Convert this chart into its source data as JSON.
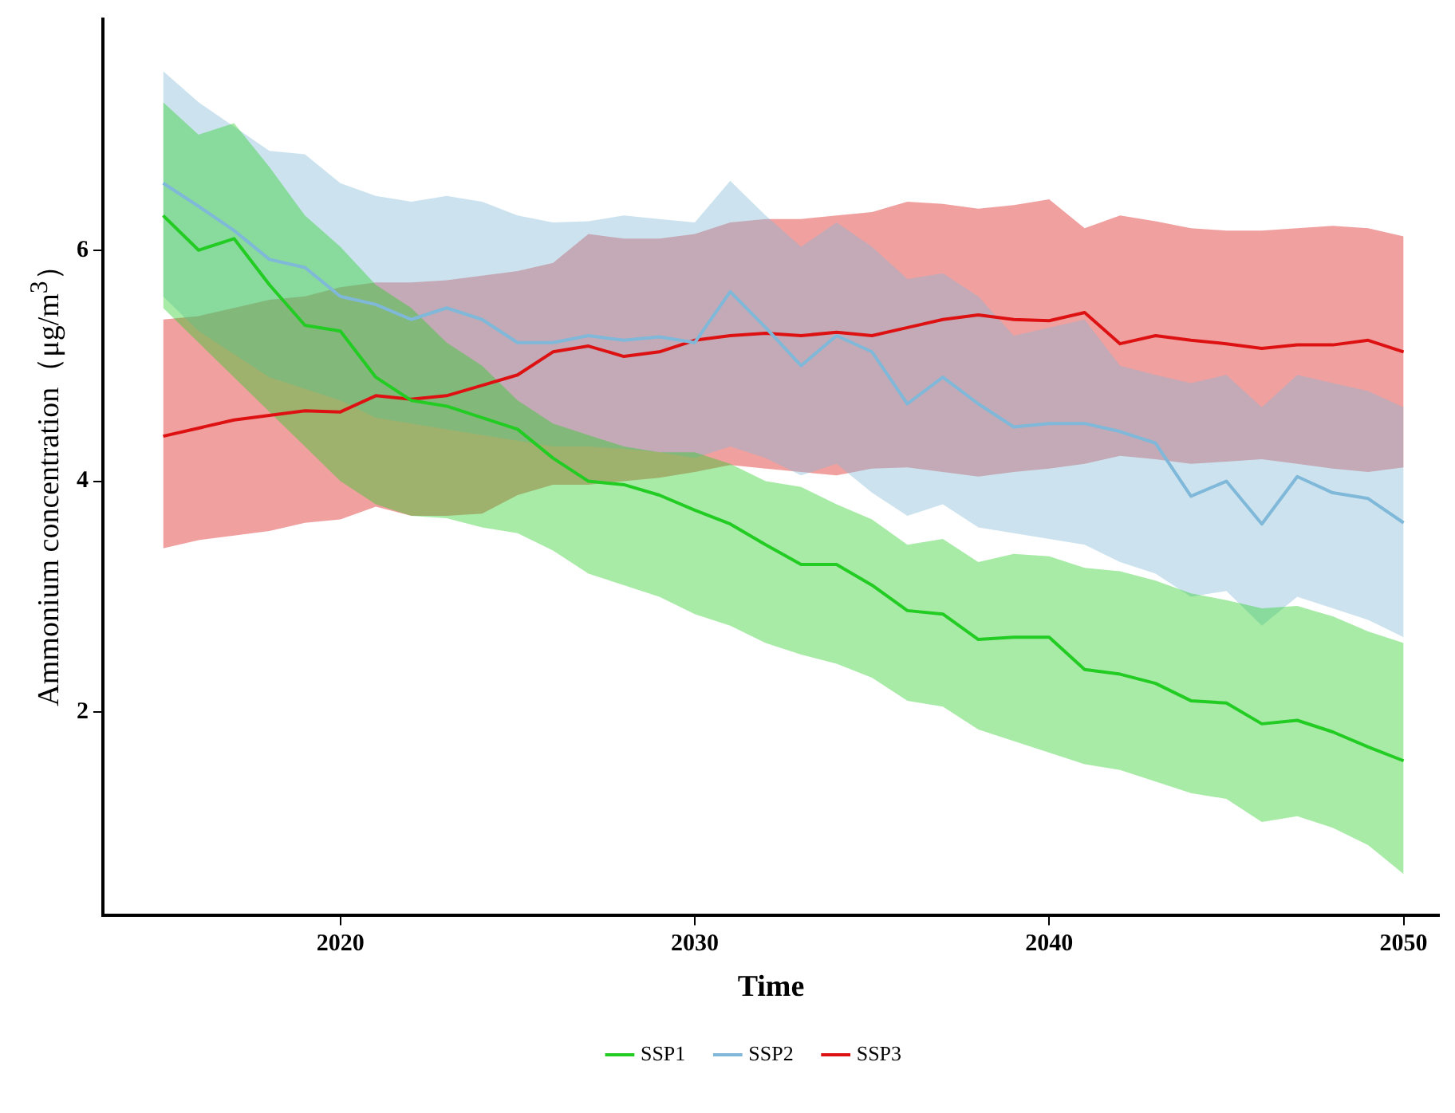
{
  "chart_data": {
    "type": "line",
    "xlabel": "Time",
    "ylabel": "Ammonium concentration（μg/m$^{3}$）",
    "x": [
      2015,
      2016,
      2017,
      2018,
      2019,
      2020,
      2021,
      2022,
      2023,
      2024,
      2025,
      2026,
      2027,
      2028,
      2029,
      2030,
      2031,
      2032,
      2033,
      2034,
      2035,
      2036,
      2037,
      2038,
      2039,
      2040,
      2041,
      2042,
      2043,
      2044,
      2045,
      2046,
      2047,
      2048,
      2049,
      2050
    ],
    "xlim": [
      2013.3,
      2051
    ],
    "xticks": [
      2020,
      2030,
      2040,
      2050
    ],
    "ylim": [
      0.24,
      8
    ],
    "yticks": [
      2,
      4,
      6
    ],
    "grid": false,
    "legend": "bottom",
    "marker": "none",
    "line_style": "solid",
    "series": [
      {
        "name": "SSP1",
        "color": "#22cc22",
        "values": [
          6.3,
          6.0,
          6.1,
          5.7,
          5.35,
          5.3,
          4.9,
          4.7,
          4.65,
          4.55,
          4.45,
          4.2,
          4.0,
          3.97,
          3.88,
          3.75,
          3.63,
          3.45,
          3.28,
          3.28,
          3.1,
          2.88,
          2.85,
          2.63,
          2.65,
          2.65,
          2.37,
          2.33,
          2.25,
          2.1,
          2.08,
          1.9,
          1.93,
          1.83,
          1.7,
          1.58
        ],
        "lower": [
          5.5,
          5.2,
          4.9,
          4.6,
          4.3,
          4.0,
          3.8,
          3.7,
          3.68,
          3.6,
          3.55,
          3.4,
          3.2,
          3.1,
          3.0,
          2.85,
          2.75,
          2.6,
          2.5,
          2.42,
          2.3,
          2.1,
          2.05,
          1.85,
          1.75,
          1.65,
          1.55,
          1.5,
          1.4,
          1.3,
          1.25,
          1.05,
          1.1,
          1.0,
          0.85,
          0.6
        ],
        "upper": [
          7.28,
          7.0,
          7.1,
          6.72,
          6.3,
          6.03,
          5.7,
          5.5,
          5.2,
          5.0,
          4.7,
          4.5,
          4.4,
          4.3,
          4.25,
          4.25,
          4.15,
          4.0,
          3.95,
          3.8,
          3.67,
          3.45,
          3.5,
          3.3,
          3.37,
          3.35,
          3.25,
          3.22,
          3.14,
          3.03,
          2.97,
          2.9,
          2.92,
          2.83,
          2.7,
          2.6
        ]
      },
      {
        "name": "SSP2",
        "color": "#7fb8d8",
        "values": [
          6.58,
          6.38,
          6.17,
          5.92,
          5.85,
          5.6,
          5.53,
          5.4,
          5.5,
          5.4,
          5.2,
          5.2,
          5.26,
          5.22,
          5.25,
          5.2,
          5.64,
          5.33,
          5.0,
          5.26,
          5.12,
          4.67,
          4.9,
          4.67,
          4.47,
          4.5,
          4.5,
          4.43,
          4.33,
          3.87,
          4.0,
          3.63,
          4.04,
          3.9,
          3.85,
          3.64
        ],
        "lower": [
          5.6,
          5.3,
          5.1,
          4.9,
          4.8,
          4.7,
          4.55,
          4.5,
          4.45,
          4.4,
          4.35,
          4.3,
          4.3,
          4.28,
          4.25,
          4.2,
          4.3,
          4.2,
          4.05,
          4.15,
          3.9,
          3.7,
          3.8,
          3.6,
          3.55,
          3.5,
          3.45,
          3.3,
          3.2,
          3.0,
          3.05,
          2.75,
          3.0,
          2.9,
          2.8,
          2.65
        ],
        "upper": [
          7.55,
          7.28,
          7.07,
          6.86,
          6.83,
          6.58,
          6.47,
          6.42,
          6.47,
          6.42,
          6.3,
          6.24,
          6.25,
          6.3,
          6.27,
          6.24,
          6.6,
          6.3,
          6.03,
          6.24,
          6.03,
          5.75,
          5.8,
          5.6,
          5.26,
          5.33,
          5.4,
          5.0,
          4.92,
          4.85,
          4.92,
          4.64,
          4.92,
          4.85,
          4.78,
          4.64
        ]
      },
      {
        "name": "SSP3",
        "color": "#dd1111",
        "values": [
          4.39,
          4.46,
          4.53,
          4.57,
          4.61,
          4.6,
          4.74,
          4.71,
          4.74,
          4.83,
          4.92,
          5.12,
          5.17,
          5.08,
          5.12,
          5.22,
          5.26,
          5.28,
          5.26,
          5.29,
          5.26,
          5.33,
          5.4,
          5.44,
          5.4,
          5.39,
          5.46,
          5.19,
          5.26,
          5.22,
          5.19,
          5.15,
          5.18,
          5.18,
          5.22,
          5.12
        ],
        "lower": [
          3.42,
          3.49,
          3.53,
          3.57,
          3.64,
          3.67,
          3.78,
          3.7,
          3.7,
          3.72,
          3.88,
          3.97,
          3.97,
          4.0,
          4.03,
          4.08,
          4.14,
          4.11,
          4.08,
          4.05,
          4.11,
          4.12,
          4.08,
          4.04,
          4.08,
          4.11,
          4.15,
          4.22,
          4.19,
          4.15,
          4.17,
          4.19,
          4.15,
          4.11,
          4.08,
          4.12
        ],
        "upper": [
          5.4,
          5.43,
          5.5,
          5.57,
          5.6,
          5.68,
          5.72,
          5.72,
          5.74,
          5.78,
          5.82,
          5.89,
          6.14,
          6.1,
          6.1,
          6.14,
          6.24,
          6.27,
          6.27,
          6.3,
          6.33,
          6.42,
          6.4,
          6.36,
          6.39,
          6.44,
          6.19,
          6.3,
          6.25,
          6.19,
          6.17,
          6.17,
          6.19,
          6.21,
          6.19,
          6.12
        ]
      }
    ]
  }
}
